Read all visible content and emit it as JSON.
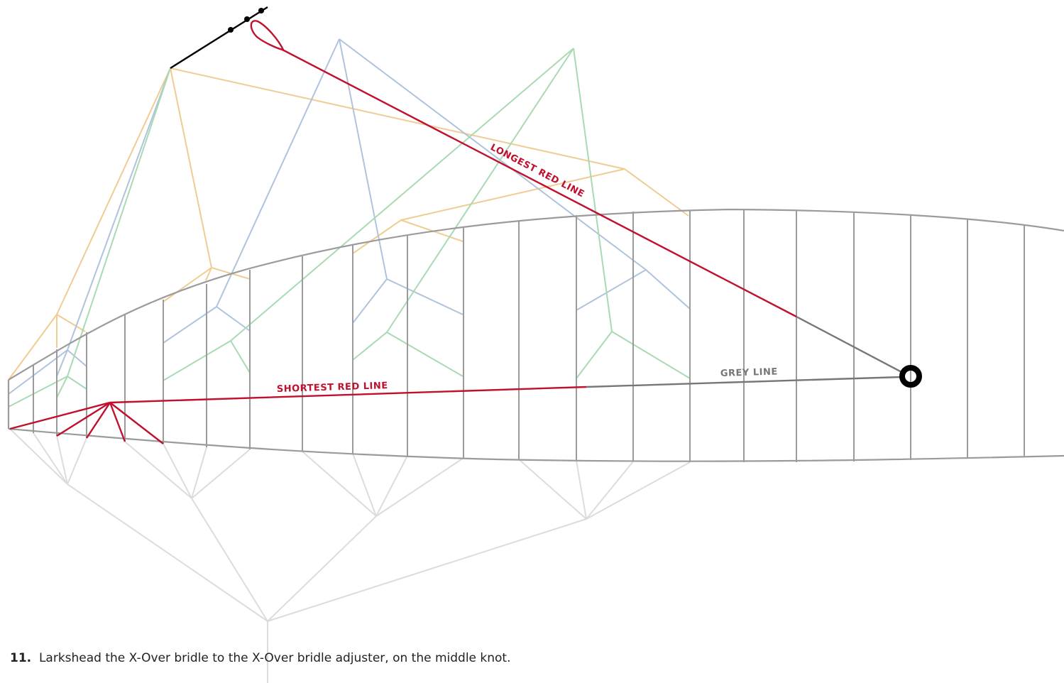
{
  "labels": {
    "longest": "LONGEST RED LINE",
    "shortest": "SHORTEST RED LINE",
    "grey": "GREY LINE"
  },
  "caption": {
    "step_number": "11.",
    "text": "Larkshead the X-Over bridle to the X-Over bridle adjuster, on the middle knot."
  },
  "colors": {
    "red": "#C0102E",
    "grey": "#777777",
    "kite_outline": "#9B9B9B",
    "orange_bridle": "#F0CC93",
    "blue_bridle": "#AFC3DD",
    "green_bridle": "#A8DAB3",
    "light_grey_bridle": "#DCDCDC",
    "black": "#000000"
  }
}
